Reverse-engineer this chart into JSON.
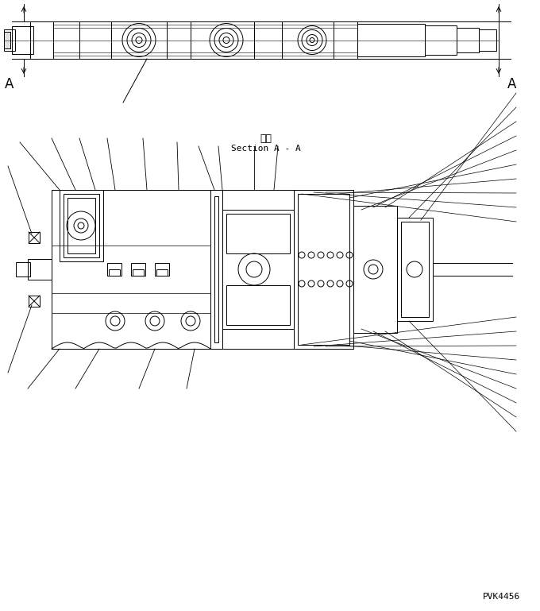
{
  "bg_color": "#ffffff",
  "line_color": "#000000",
  "fig_width": 6.8,
  "fig_height": 7.69,
  "dpi": 100,
  "label_A_left": "A",
  "label_A_right": "A",
  "section_label_jp": "断面",
  "section_label_en": "Section A - A",
  "watermark": "PVK4456"
}
